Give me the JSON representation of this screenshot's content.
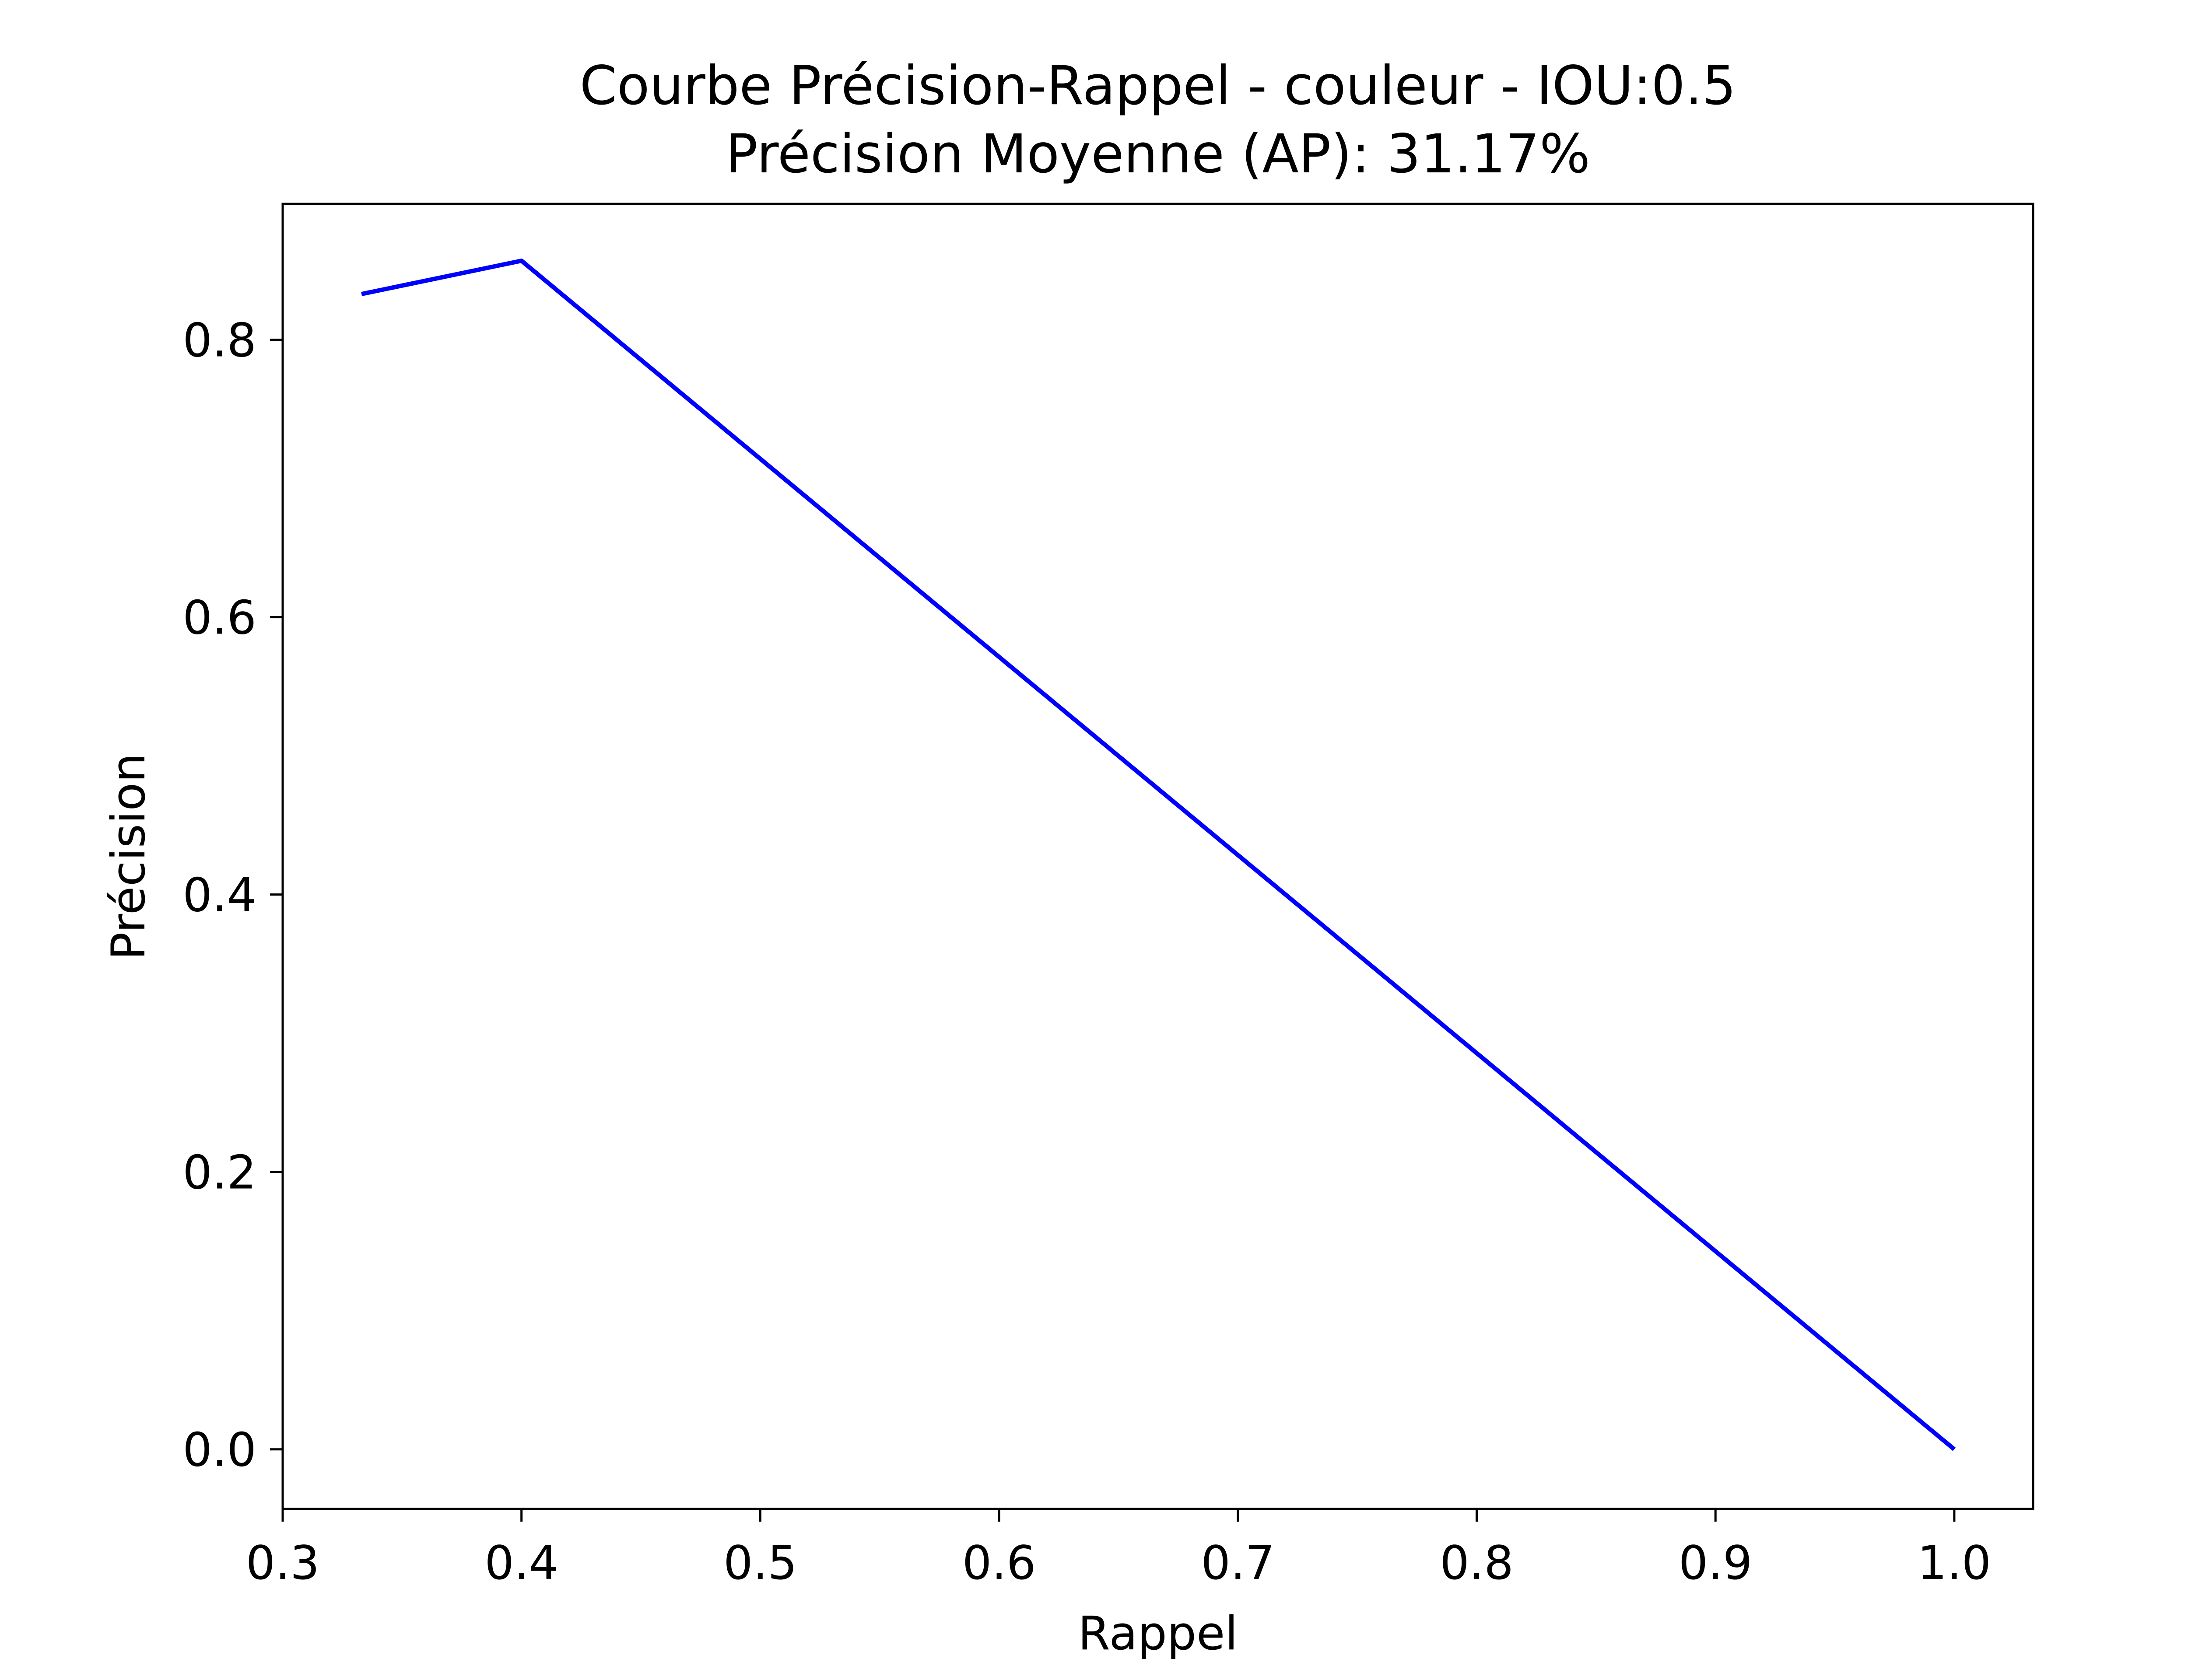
{
  "chart_data": {
    "type": "line",
    "title": "Courbe Précision-Rappel - couleur - IOU:0.5",
    "subtitle": "Précision Moyenne (AP): 31.17%",
    "xlabel": "Rappel",
    "ylabel": "Précision",
    "xlim": [
      0.3,
      1.033
    ],
    "ylim": [
      -0.043,
      0.898
    ],
    "xticks": [
      0.3,
      0.4,
      0.5,
      0.6,
      0.7,
      0.8,
      0.9,
      1.0
    ],
    "xtick_labels": [
      "0.3",
      "0.4",
      "0.5",
      "0.6",
      "0.7",
      "0.8",
      "0.9",
      "1.0"
    ],
    "yticks": [
      0.0,
      0.2,
      0.4,
      0.6,
      0.8
    ],
    "ytick_labels": [
      "0.0",
      "0.2",
      "0.4",
      "0.6",
      "0.8"
    ],
    "grid": false,
    "series": [
      {
        "color": "#0000ff",
        "x": [
          0.333,
          0.4,
          1.0
        ],
        "y": [
          0.833,
          0.857,
          0.0
        ]
      }
    ]
  }
}
